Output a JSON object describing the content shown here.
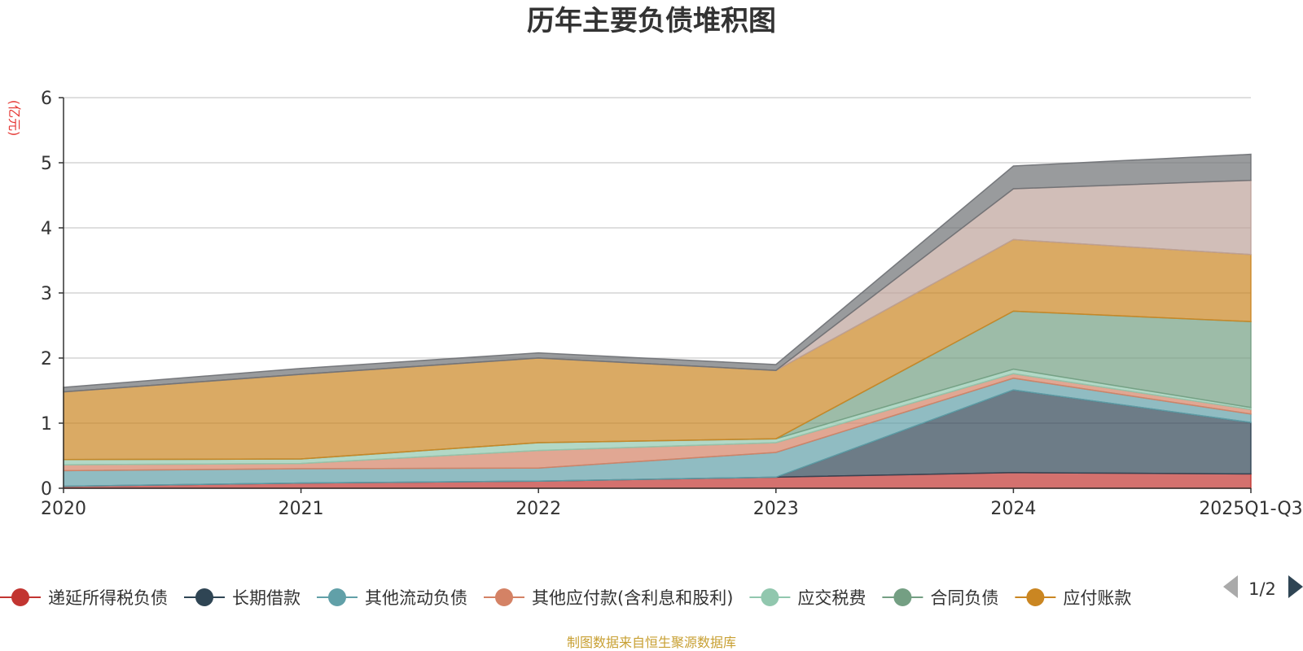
{
  "chart_data": {
    "type": "area",
    "stacked": true,
    "title": "历年主要负债堆积图",
    "y_unit": "(亿元)",
    "x": [
      "2020",
      "2021",
      "2022",
      "2023",
      "2024",
      "2025Q1-Q3"
    ],
    "ylim": [
      0,
      6
    ],
    "yticks": [
      0,
      1,
      2,
      3,
      4,
      5,
      6
    ],
    "grid": true,
    "series": [
      {
        "name": "递延所得税负债",
        "color": "#c23531",
        "values": [
          0.03,
          0.08,
          0.11,
          0.17,
          0.24,
          0.22
        ]
      },
      {
        "name": "长期借款",
        "color": "#2f4554",
        "values": [
          0.0,
          0.0,
          0.0,
          0.0,
          1.27,
          0.79
        ]
      },
      {
        "name": "其他流动负债",
        "color": "#61a0a8",
        "values": [
          0.24,
          0.22,
          0.2,
          0.38,
          0.18,
          0.13
        ]
      },
      {
        "name": "其他应付款(含利息和股利)",
        "color": "#d48265",
        "values": [
          0.09,
          0.08,
          0.27,
          0.15,
          0.07,
          0.07
        ]
      },
      {
        "name": "应交税费",
        "color": "#91c7ae",
        "values": [
          0.08,
          0.07,
          0.12,
          0.06,
          0.07,
          0.03
        ]
      },
      {
        "name": "合同负债",
        "color": "#749f83",
        "values": [
          0.0,
          0.0,
          0.0,
          0.0,
          0.89,
          1.32
        ]
      },
      {
        "name": "应付账款",
        "color": "#ca8622",
        "values": [
          1.04,
          1.3,
          1.3,
          1.05,
          1.1,
          1.03
        ]
      },
      {
        "name": "",
        "color": "#bda29a",
        "values": [
          0.0,
          0.0,
          0.0,
          0.0,
          0.78,
          1.14
        ]
      },
      {
        "name": "",
        "color": "#6e7074",
        "values": [
          0.07,
          0.09,
          0.08,
          0.09,
          0.35,
          0.4
        ]
      }
    ]
  },
  "legend": {
    "visible_names": [
      "递延所得税负债",
      "长期借款",
      "其他流动负债",
      "其他应付款(含利息和股利)",
      "应交税费",
      "合同负债",
      "应付账款"
    ],
    "page": "1/2"
  },
  "source": "制图数据来自恒生聚源数据库"
}
